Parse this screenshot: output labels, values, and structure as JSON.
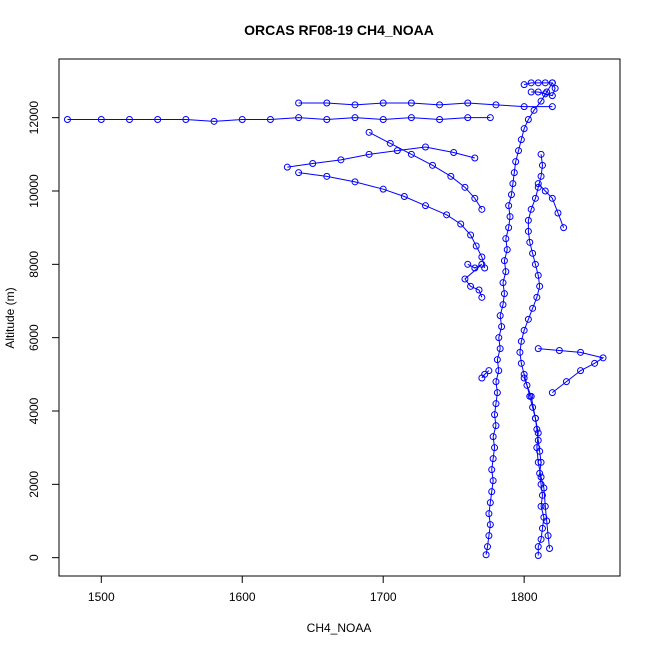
{
  "chart_data": {
    "type": "scatter",
    "title": "ORCAS RF08-19 CH4_NOAA",
    "xlabel": "CH4_NOAA",
    "ylabel": "Altitude (m)",
    "xlim": [
      1470,
      1868
    ],
    "ylim": [
      -500,
      13600
    ],
    "xticks": [
      1500,
      1600,
      1700,
      1800
    ],
    "yticks": [
      0,
      2000,
      4000,
      6000,
      8000,
      10000,
      12000
    ],
    "color": "#0000ff",
    "grid": false,
    "legend": "none",
    "marker": "open-circle",
    "connected": true,
    "series": [
      {
        "values": [
          [
            1773,
            80
          ],
          [
            1774,
            300
          ],
          [
            1775,
            600
          ],
          [
            1776,
            900
          ],
          [
            1775,
            1200
          ],
          [
            1776,
            1500
          ],
          [
            1777,
            1800
          ],
          [
            1778,
            2100
          ],
          [
            1777,
            2400
          ],
          [
            1778,
            2700
          ],
          [
            1779,
            3000
          ],
          [
            1778,
            3300
          ],
          [
            1780,
            3600
          ],
          [
            1779,
            3900
          ],
          [
            1780,
            4200
          ],
          [
            1781,
            4500
          ],
          [
            1780,
            4800
          ],
          [
            1782,
            5100
          ],
          [
            1781,
            5400
          ],
          [
            1783,
            5700
          ],
          [
            1782,
            6000
          ],
          [
            1784,
            6300
          ],
          [
            1783,
            6600
          ],
          [
            1785,
            6900
          ],
          [
            1786,
            7200
          ],
          [
            1785,
            7500
          ],
          [
            1787,
            7800
          ],
          [
            1786,
            8100
          ],
          [
            1788,
            8400
          ],
          [
            1787,
            8700
          ],
          [
            1789,
            9000
          ],
          [
            1790,
            9300
          ],
          [
            1789,
            9600
          ],
          [
            1791,
            9900
          ],
          [
            1792,
            10200
          ],
          [
            1793,
            10500
          ],
          [
            1794,
            10800
          ],
          [
            1796,
            11100
          ],
          [
            1798,
            11400
          ],
          [
            1800,
            11700
          ],
          [
            1803,
            11950
          ],
          [
            1807,
            12200
          ],
          [
            1812,
            12450
          ],
          [
            1816,
            12700
          ],
          [
            1820,
            12950
          ]
        ]
      },
      {
        "values": [
          [
            1776,
            12000
          ],
          [
            1760,
            12000
          ],
          [
            1740,
            11950
          ],
          [
            1720,
            12000
          ],
          [
            1700,
            11950
          ],
          [
            1680,
            12000
          ],
          [
            1660,
            11950
          ],
          [
            1640,
            12000
          ],
          [
            1620,
            11950
          ],
          [
            1600,
            11950
          ],
          [
            1580,
            11900
          ],
          [
            1560,
            11950
          ],
          [
            1540,
            11950
          ],
          [
            1520,
            11950
          ],
          [
            1500,
            11950
          ],
          [
            1476,
            11950
          ]
        ]
      },
      {
        "values": [
          [
            1640,
            12400
          ],
          [
            1660,
            12400
          ],
          [
            1680,
            12350
          ],
          [
            1700,
            12400
          ],
          [
            1720,
            12400
          ],
          [
            1740,
            12350
          ],
          [
            1760,
            12400
          ],
          [
            1780,
            12350
          ],
          [
            1800,
            12300
          ],
          [
            1820,
            12300
          ]
        ]
      },
      {
        "values": [
          [
            1632,
            10650
          ],
          [
            1650,
            10750
          ],
          [
            1670,
            10850
          ],
          [
            1690,
            11000
          ],
          [
            1710,
            11100
          ],
          [
            1730,
            11200
          ],
          [
            1750,
            11050
          ],
          [
            1765,
            10900
          ]
        ]
      },
      {
        "values": [
          [
            1640,
            10500
          ],
          [
            1660,
            10400
          ],
          [
            1680,
            10250
          ],
          [
            1700,
            10050
          ],
          [
            1715,
            9850
          ],
          [
            1730,
            9600
          ],
          [
            1745,
            9350
          ],
          [
            1755,
            9100
          ],
          [
            1762,
            8800
          ],
          [
            1766,
            8500
          ],
          [
            1770,
            8200
          ],
          [
            1772,
            7900
          ]
        ]
      },
      {
        "values": [
          [
            1690,
            11600
          ],
          [
            1705,
            11300
          ],
          [
            1720,
            11000
          ],
          [
            1735,
            10700
          ],
          [
            1748,
            10400
          ],
          [
            1758,
            10100
          ],
          [
            1765,
            9800
          ],
          [
            1770,
            9500
          ]
        ]
      },
      {
        "values": [
          [
            1760,
            8000
          ],
          [
            1765,
            7900
          ],
          [
            1770,
            8000
          ],
          [
            1758,
            7600
          ],
          [
            1762,
            7400
          ],
          [
            1768,
            7300
          ],
          [
            1770,
            7100
          ]
        ]
      },
      {
        "values": [
          [
            1770,
            4900
          ],
          [
            1772,
            5000
          ],
          [
            1775,
            5100
          ]
        ]
      },
      {
        "values": [
          [
            1810,
            60
          ],
          [
            1810,
            300
          ],
          [
            1812,
            500
          ],
          [
            1813,
            800
          ],
          [
            1814,
            1100
          ],
          [
            1812,
            1400
          ],
          [
            1813,
            1700
          ],
          [
            1812,
            2000
          ],
          [
            1811,
            2300
          ],
          [
            1812,
            2600
          ],
          [
            1811,
            2900
          ],
          [
            1810,
            3200
          ],
          [
            1809,
            3500
          ],
          [
            1808,
            3800
          ],
          [
            1806,
            4100
          ],
          [
            1804,
            4400
          ],
          [
            1802,
            4700
          ],
          [
            1800,
            5000
          ],
          [
            1798,
            5300
          ],
          [
            1797,
            5600
          ],
          [
            1798,
            5900
          ],
          [
            1800,
            6200
          ],
          [
            1803,
            6500
          ],
          [
            1806,
            6800
          ],
          [
            1809,
            7100
          ],
          [
            1811,
            7400
          ],
          [
            1810,
            7700
          ],
          [
            1808,
            8000
          ],
          [
            1806,
            8300
          ],
          [
            1804,
            8600
          ],
          [
            1803,
            8900
          ],
          [
            1803,
            9200
          ],
          [
            1805,
            9500
          ],
          [
            1808,
            9800
          ],
          [
            1810,
            10100
          ],
          [
            1812,
            10400
          ],
          [
            1813,
            10700
          ],
          [
            1812,
            11000
          ]
        ]
      },
      {
        "values": [
          [
            1818,
            250
          ],
          [
            1817,
            600
          ],
          [
            1816,
            1000
          ],
          [
            1815,
            1400
          ],
          [
            1814,
            1900
          ],
          [
            1812,
            2200
          ],
          [
            1810,
            2600
          ],
          [
            1809,
            3000
          ],
          [
            1810,
            3400
          ],
          [
            1808,
            3800
          ],
          [
            1805,
            4400
          ],
          [
            1800,
            4900
          ]
        ]
      },
      {
        "values": [
          [
            1810,
            10200
          ],
          [
            1815,
            10000
          ],
          [
            1820,
            9800
          ],
          [
            1824,
            9400
          ],
          [
            1828,
            9000
          ]
        ]
      },
      {
        "values": [
          [
            1820,
            4500
          ],
          [
            1830,
            4800
          ],
          [
            1840,
            5100
          ],
          [
            1850,
            5300
          ],
          [
            1856,
            5450
          ],
          [
            1840,
            5600
          ],
          [
            1825,
            5650
          ],
          [
            1810,
            5700
          ]
        ]
      },
      {
        "values": [
          [
            1800,
            12900
          ],
          [
            1805,
            12950
          ],
          [
            1810,
            12950
          ],
          [
            1815,
            12950
          ],
          [
            1820,
            12950
          ],
          [
            1822,
            12800
          ],
          [
            1820,
            12600
          ],
          [
            1815,
            12650
          ],
          [
            1810,
            12700
          ],
          [
            1805,
            12700
          ]
        ]
      }
    ]
  }
}
